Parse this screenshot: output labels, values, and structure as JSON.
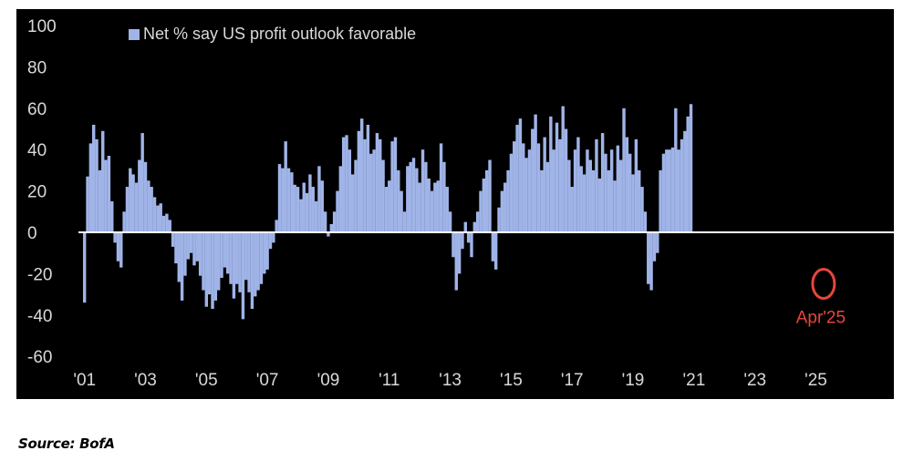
{
  "chart_data": {
    "type": "bar",
    "legend": "Net % say US profit outlook favorable",
    "ylim": [
      -65,
      100
    ],
    "yticks": [
      100,
      80,
      60,
      40,
      20,
      0,
      -20,
      -40,
      -60
    ],
    "xticks": [
      "'01",
      "'03",
      "'05",
      "'07",
      "'09",
      "'11",
      "'13",
      "'15",
      "'17",
      "'19",
      "'21",
      "'23",
      "'25"
    ],
    "xtick_years": [
      2001,
      2003,
      2005,
      2007,
      2009,
      2011,
      2013,
      2015,
      2017,
      2019,
      2021,
      2023,
      2025
    ],
    "xlim": [
      2000.8,
      2027.2
    ],
    "series": [
      {
        "name": "Net % say US profit outlook favorable",
        "points": [
          [
            2001.0,
            -34
          ],
          [
            2001.1,
            27
          ],
          [
            2001.2,
            43
          ],
          [
            2001.3,
            52
          ],
          [
            2001.4,
            45
          ],
          [
            2001.5,
            30
          ],
          [
            2001.6,
            49
          ],
          [
            2001.7,
            35
          ],
          [
            2001.8,
            37
          ],
          [
            2001.9,
            15
          ],
          [
            2002.0,
            -5
          ],
          [
            2002.1,
            -14
          ],
          [
            2002.2,
            -17
          ],
          [
            2002.3,
            10
          ],
          [
            2002.4,
            22
          ],
          [
            2002.5,
            31
          ],
          [
            2002.6,
            28
          ],
          [
            2002.7,
            24
          ],
          [
            2002.8,
            35
          ],
          [
            2002.9,
            48
          ],
          [
            2003.0,
            34
          ],
          [
            2003.1,
            25
          ],
          [
            2003.2,
            22
          ],
          [
            2003.3,
            17
          ],
          [
            2003.4,
            13
          ],
          [
            2003.5,
            14
          ],
          [
            2003.6,
            8
          ],
          [
            2003.7,
            9
          ],
          [
            2003.8,
            6
          ],
          [
            2003.9,
            -7
          ],
          [
            2004.0,
            -15
          ],
          [
            2004.1,
            -24
          ],
          [
            2004.2,
            -33
          ],
          [
            2004.3,
            -21
          ],
          [
            2004.4,
            -13
          ],
          [
            2004.5,
            -10
          ],
          [
            2004.6,
            -16
          ],
          [
            2004.7,
            -14
          ],
          [
            2004.8,
            -21
          ],
          [
            2004.9,
            -28
          ],
          [
            2005.0,
            -36
          ],
          [
            2005.1,
            -30
          ],
          [
            2005.2,
            -37
          ],
          [
            2005.3,
            -33
          ],
          [
            2005.4,
            -28
          ],
          [
            2005.5,
            -22
          ],
          [
            2005.6,
            -17
          ],
          [
            2005.7,
            -20
          ],
          [
            2005.8,
            -25
          ],
          [
            2005.9,
            -32
          ],
          [
            2006.0,
            -25
          ],
          [
            2006.1,
            -29
          ],
          [
            2006.2,
            -42
          ],
          [
            2006.3,
            -23
          ],
          [
            2006.4,
            -29
          ],
          [
            2006.5,
            -37
          ],
          [
            2006.6,
            -31
          ],
          [
            2006.7,
            -28
          ],
          [
            2006.8,
            -25
          ],
          [
            2006.9,
            -20
          ],
          [
            2007.0,
            -18
          ],
          [
            2007.1,
            -8
          ],
          [
            2007.2,
            -5
          ],
          [
            2007.3,
            6
          ],
          [
            2007.4,
            33
          ],
          [
            2007.5,
            31
          ],
          [
            2007.6,
            44
          ],
          [
            2007.7,
            31
          ],
          [
            2007.8,
            29
          ],
          [
            2007.9,
            23
          ],
          [
            2008.0,
            22
          ],
          [
            2008.1,
            16
          ],
          [
            2008.2,
            24
          ],
          [
            2008.3,
            19
          ],
          [
            2008.4,
            28
          ],
          [
            2008.5,
            22
          ],
          [
            2008.6,
            15
          ],
          [
            2008.7,
            32
          ],
          [
            2008.8,
            25
          ],
          [
            2008.9,
            10
          ],
          [
            2009.0,
            -2
          ],
          [
            2009.1,
            4
          ],
          [
            2009.2,
            10
          ],
          [
            2009.3,
            20
          ],
          [
            2009.4,
            32
          ],
          [
            2009.5,
            46
          ],
          [
            2009.6,
            47
          ],
          [
            2009.7,
            40
          ],
          [
            2009.8,
            28
          ],
          [
            2009.9,
            35
          ],
          [
            2010.0,
            49
          ],
          [
            2010.1,
            55
          ],
          [
            2010.2,
            45
          ],
          [
            2010.3,
            52
          ],
          [
            2010.4,
            38
          ],
          [
            2010.5,
            40
          ],
          [
            2010.6,
            48
          ],
          [
            2010.7,
            45
          ],
          [
            2010.8,
            35
          ],
          [
            2010.9,
            22
          ],
          [
            2011.0,
            25
          ],
          [
            2011.1,
            44
          ],
          [
            2011.2,
            46
          ],
          [
            2011.3,
            30
          ],
          [
            2011.4,
            20
          ],
          [
            2011.5,
            10
          ],
          [
            2011.6,
            32
          ],
          [
            2011.7,
            34
          ],
          [
            2011.8,
            36
          ],
          [
            2011.9,
            31
          ],
          [
            2012.0,
            24
          ],
          [
            2012.1,
            40
          ],
          [
            2012.2,
            34
          ],
          [
            2012.3,
            26
          ],
          [
            2012.4,
            20
          ],
          [
            2012.5,
            24
          ],
          [
            2012.6,
            25
          ],
          [
            2012.7,
            43
          ],
          [
            2012.8,
            34
          ],
          [
            2012.9,
            22
          ],
          [
            2013.0,
            10
          ],
          [
            2013.1,
            -12
          ],
          [
            2013.2,
            -28
          ],
          [
            2013.3,
            -20
          ],
          [
            2013.4,
            -8
          ],
          [
            2013.5,
            5
          ],
          [
            2013.6,
            -5
          ],
          [
            2013.7,
            -12
          ],
          [
            2013.8,
            5
          ],
          [
            2013.9,
            10
          ],
          [
            2014.0,
            20
          ],
          [
            2014.1,
            26
          ],
          [
            2014.2,
            30
          ],
          [
            2014.3,
            35
          ],
          [
            2014.4,
            -14
          ],
          [
            2014.5,
            -18
          ],
          [
            2014.6,
            12
          ],
          [
            2014.7,
            20
          ],
          [
            2014.8,
            24
          ],
          [
            2014.9,
            30
          ],
          [
            2015.0,
            38
          ],
          [
            2015.1,
            44
          ],
          [
            2015.2,
            52
          ],
          [
            2015.3,
            55
          ],
          [
            2015.4,
            43
          ],
          [
            2015.5,
            36
          ],
          [
            2015.6,
            40
          ],
          [
            2015.7,
            50
          ],
          [
            2015.8,
            57
          ],
          [
            2015.9,
            43
          ],
          [
            2016.0,
            30
          ],
          [
            2016.1,
            46
          ],
          [
            2016.2,
            34
          ],
          [
            2016.3,
            56
          ],
          [
            2016.4,
            40
          ],
          [
            2016.5,
            53
          ],
          [
            2016.6,
            45
          ],
          [
            2016.7,
            61
          ],
          [
            2016.8,
            50
          ],
          [
            2016.9,
            35
          ],
          [
            2017.0,
            22
          ],
          [
            2017.1,
            40
          ],
          [
            2017.2,
            46
          ],
          [
            2017.3,
            32
          ],
          [
            2017.4,
            28
          ],
          [
            2017.5,
            40
          ],
          [
            2017.6,
            35
          ],
          [
            2017.7,
            30
          ],
          [
            2017.8,
            45
          ],
          [
            2017.9,
            26
          ],
          [
            2018.0,
            48
          ],
          [
            2018.1,
            38
          ],
          [
            2018.2,
            30
          ],
          [
            2018.3,
            40
          ],
          [
            2018.4,
            25
          ],
          [
            2018.5,
            42
          ],
          [
            2018.6,
            35
          ],
          [
            2018.7,
            60
          ],
          [
            2018.8,
            46
          ],
          [
            2018.9,
            38
          ],
          [
            2019.0,
            28
          ],
          [
            2019.1,
            45
          ],
          [
            2019.2,
            30
          ],
          [
            2019.3,
            22
          ],
          [
            2019.4,
            10
          ],
          [
            2019.5,
            -25
          ],
          [
            2019.6,
            -28
          ],
          [
            2019.7,
            -14
          ],
          [
            2019.8,
            -10
          ],
          [
            2019.9,
            30
          ],
          [
            2020.0,
            38
          ],
          [
            2020.1,
            40
          ],
          [
            2020.2,
            40
          ],
          [
            2020.3,
            41
          ],
          [
            2020.4,
            60
          ],
          [
            2020.5,
            40
          ],
          [
            2020.6,
            45
          ],
          [
            2020.7,
            49
          ],
          [
            2020.8,
            56
          ],
          [
            2020.9,
            62
          ]
        ]
      }
    ],
    "zero_line_color": "#ffffff",
    "bar_color": "#a0b4e8",
    "annotation": {
      "text": "Apr'25",
      "x": 2025.25,
      "y": -24,
      "color": "#e8453c"
    }
  },
  "source": "Source: BofA"
}
